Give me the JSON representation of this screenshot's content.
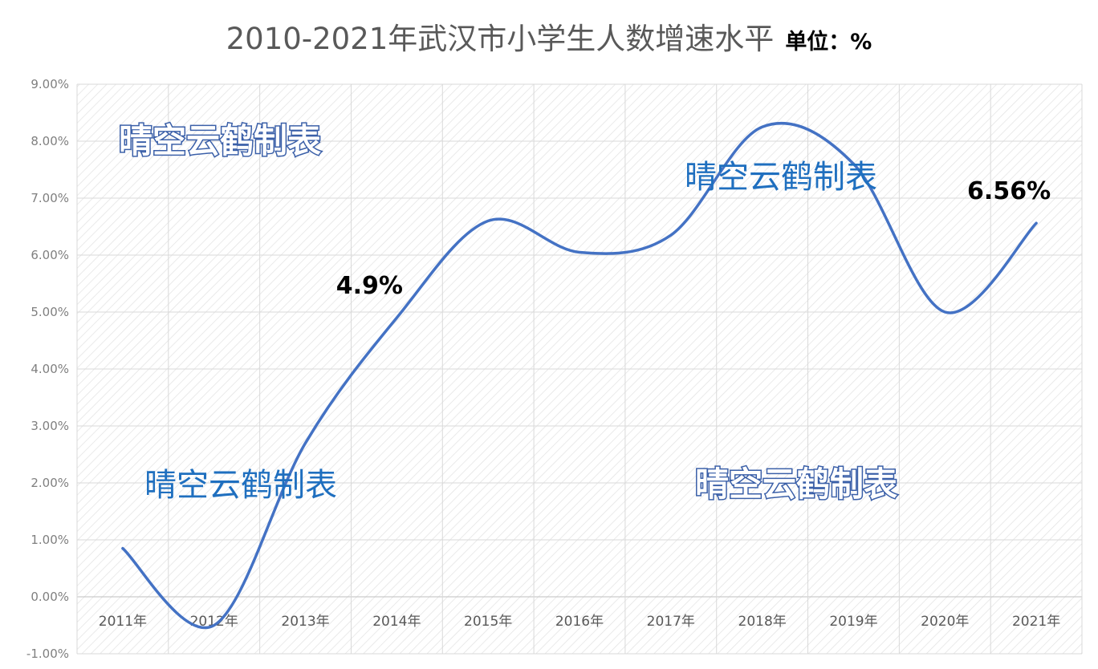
{
  "title": "2010-2021年武汉市小学生人数增速水平",
  "unit_label": "单位：%",
  "chart_data": {
    "type": "line",
    "categories": [
      "2011年",
      "2012年",
      "2013年",
      "2014年",
      "2015年",
      "2016年",
      "2017年",
      "2018年",
      "2019年",
      "2020年",
      "2021年"
    ],
    "series": [
      {
        "values": [
          0.85,
          -0.5,
          2.7,
          4.9,
          6.6,
          6.05,
          6.35,
          8.25,
          7.6,
          5.0,
          6.56
        ],
        "color": "#4472c4"
      }
    ],
    "ylim": [
      -1,
      9
    ],
    "yticks": [
      "-1.00%",
      "0.00%",
      "1.00%",
      "2.00%",
      "3.00%",
      "4.00%",
      "5.00%",
      "6.00%",
      "7.00%",
      "8.00%",
      "9.00%"
    ],
    "annotations": [
      {
        "text": "4.9%",
        "index": 3
      },
      {
        "text": "6.56%",
        "index": 10
      }
    ],
    "grid": true
  },
  "watermarks": [
    "晴空云鹤制表",
    "晴空云鹤制表",
    "晴空云鹤制表",
    "晴空云鹤制表"
  ]
}
